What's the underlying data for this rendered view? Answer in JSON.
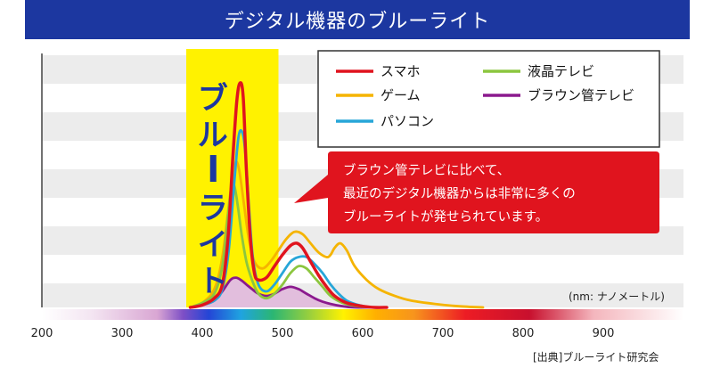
{
  "chart_data": {
    "type": "line",
    "title": "デジタル機器のブルーライト",
    "xlabel": "(nm: ナノメートル)",
    "ylabel": "",
    "xlim": [
      200,
      1000
    ],
    "x_ticks": [
      200,
      300,
      400,
      500,
      600,
      700,
      800,
      900
    ],
    "x_tick_labels": [
      "200",
      "300",
      "400",
      "500",
      "600",
      "700",
      "800",
      "900"
    ],
    "ylim": [
      0,
      1
    ],
    "grid": "horizontal bands",
    "highlight_band": {
      "label": "ブルーライト",
      "range": [
        380,
        495
      ],
      "color": "#fff200"
    },
    "legend_position": "top-right",
    "series": [
      {
        "name": "スマホ",
        "color": "#e0141e",
        "x": [
          385,
          400,
          415,
          425,
          432,
          438,
          443,
          447,
          451,
          455,
          460,
          465,
          470,
          480,
          490,
          500,
          510,
          518,
          525,
          535,
          545,
          555,
          565,
          580,
          600,
          615,
          630
        ],
        "y": [
          0,
          0.01,
          0.04,
          0.1,
          0.3,
          0.65,
          0.9,
          0.98,
          0.92,
          0.6,
          0.3,
          0.15,
          0.12,
          0.13,
          0.18,
          0.23,
          0.27,
          0.28,
          0.26,
          0.2,
          0.14,
          0.09,
          0.05,
          0.02,
          0.005,
          0,
          0
        ]
      },
      {
        "name": "ゲーム",
        "color": "#f5b400",
        "x": [
          385,
          400,
          415,
          425,
          435,
          441,
          446,
          452,
          458,
          465,
          475,
          485,
          495,
          505,
          515,
          525,
          535,
          545,
          555,
          560,
          565,
          572,
          580,
          590,
          605,
          620,
          640,
          660,
          690,
          720,
          750
        ],
        "y": [
          0,
          0.02,
          0.08,
          0.22,
          0.5,
          0.63,
          0.6,
          0.45,
          0.3,
          0.2,
          0.17,
          0.2,
          0.25,
          0.3,
          0.33,
          0.32,
          0.28,
          0.24,
          0.22,
          0.23,
          0.26,
          0.28,
          0.25,
          0.18,
          0.12,
          0.08,
          0.05,
          0.03,
          0.015,
          0.005,
          0
        ]
      },
      {
        "name": "パソコン",
        "color": "#27a6d8",
        "x": [
          385,
          400,
          415,
          425,
          433,
          440,
          445,
          449,
          453,
          458,
          463,
          470,
          480,
          490,
          500,
          510,
          520,
          530,
          540,
          550,
          560,
          570,
          580,
          595,
          610,
          625
        ],
        "y": [
          0,
          0.01,
          0.03,
          0.08,
          0.25,
          0.55,
          0.74,
          0.77,
          0.7,
          0.45,
          0.22,
          0.1,
          0.07,
          0.1,
          0.15,
          0.2,
          0.22,
          0.22,
          0.19,
          0.15,
          0.1,
          0.06,
          0.03,
          0.01,
          0,
          0
        ]
      },
      {
        "name": "液晶テレビ",
        "color": "#8cc63f",
        "x": [
          385,
          400,
          415,
          425,
          432,
          437,
          440,
          444,
          449,
          455,
          462,
          470,
          480,
          490,
          500,
          510,
          520,
          530,
          540,
          550,
          560,
          575,
          595,
          615
        ],
        "y": [
          0,
          0.02,
          0.06,
          0.18,
          0.4,
          0.54,
          0.53,
          0.45,
          0.32,
          0.2,
          0.12,
          0.06,
          0.04,
          0.06,
          0.1,
          0.15,
          0.18,
          0.17,
          0.13,
          0.09,
          0.05,
          0.02,
          0.005,
          0
        ]
      },
      {
        "name": "ブラウン管テレビ",
        "color": "#8b1a8e",
        "x": [
          385,
          400,
          415,
          425,
          435,
          442,
          448,
          455,
          462,
          470,
          480,
          490,
          500,
          510,
          520,
          530,
          540,
          550,
          560,
          575,
          590,
          610
        ],
        "y": [
          0,
          0.01,
          0.03,
          0.07,
          0.12,
          0.13,
          0.12,
          0.1,
          0.08,
          0.06,
          0.05,
          0.06,
          0.08,
          0.09,
          0.08,
          0.06,
          0.04,
          0.025,
          0.015,
          0.005,
          0,
          0
        ]
      }
    ],
    "annotations": [
      "ブラウン管テレビに比べて、",
      "最近のデジタル機器からは非常に多くの",
      "ブルーライトが発せられています。"
    ],
    "source": "[出典]ブルーライト研究会"
  },
  "colors": {
    "title_bar": "#1c37a0",
    "callout": "#e0141e",
    "band_a": "#ececec",
    "band_b": "#ffffff",
    "purple_fill": "#e2bedd"
  }
}
